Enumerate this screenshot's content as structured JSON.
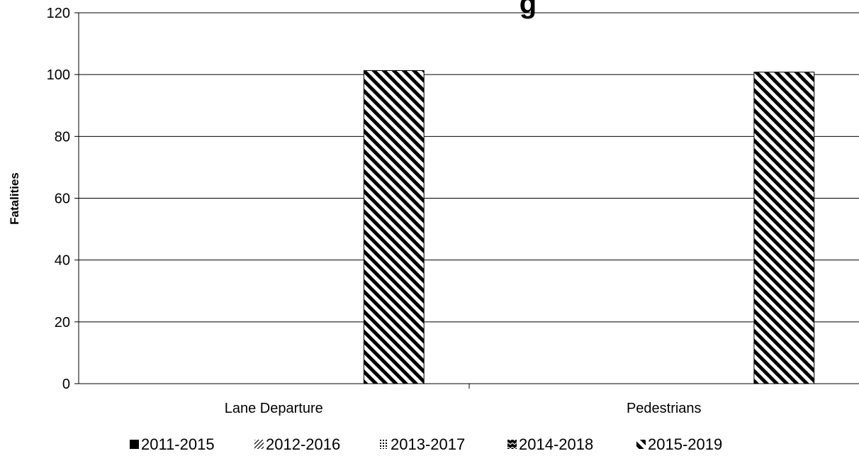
{
  "chart_data": {
    "type": "bar",
    "title": "",
    "title_visible_fragment": "g",
    "xlabel": "",
    "ylabel": "Fatalities",
    "ylim": [
      0,
      120
    ],
    "yticks": [
      0,
      20,
      40,
      60,
      80,
      100,
      120
    ],
    "categories": [
      "Lane Departure",
      "Pedestrians"
    ],
    "series": [
      {
        "name": "2011-2015",
        "values": [
          null,
          null
        ],
        "pattern": "solid"
      },
      {
        "name": "2012-2016",
        "values": [
          null,
          null
        ],
        "pattern": "diag-light"
      },
      {
        "name": "2013-2017",
        "values": [
          null,
          null
        ],
        "pattern": "dots"
      },
      {
        "name": "2014-2018",
        "values": [
          null,
          null
        ],
        "pattern": "zigzag"
      },
      {
        "name": "2015-2019",
        "values": [
          101.3,
          100.8
        ],
        "pattern": "diag-wide"
      }
    ],
    "grid": true,
    "legend_position": "bottom",
    "colors": {
      "ink": "#000000",
      "background": "#ffffff"
    }
  }
}
